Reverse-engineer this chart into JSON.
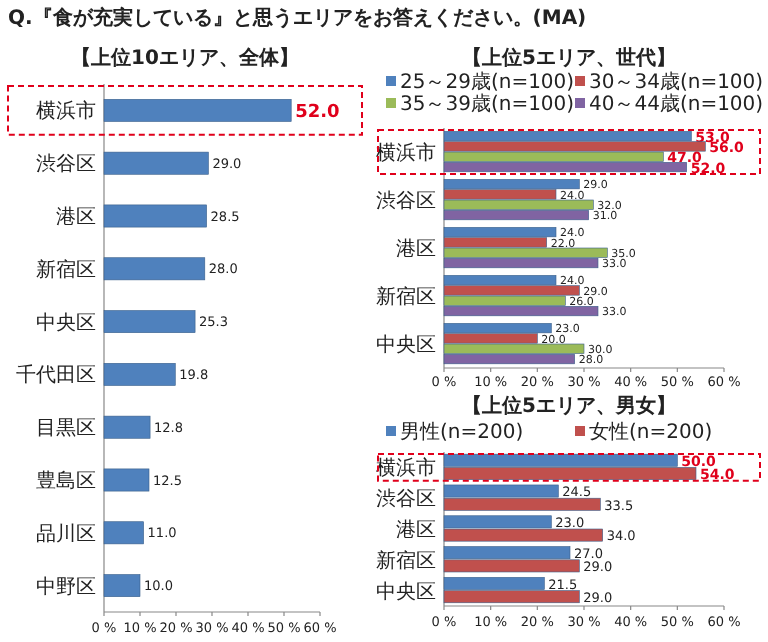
{
  "chart_data": [
    {
      "type": "bar",
      "orientation": "horizontal",
      "title": "【上位10エリア、全体】",
      "annotations": [
        "Q.『食が充実している』と思うエリアをお答えください。(MA)"
      ],
      "categories": [
        "横浜市",
        "渋谷区",
        "港区",
        "新宿区",
        "中央区",
        "千代田区",
        "目黒区",
        "豊島区",
        "品川区",
        "中野区"
      ],
      "values": [
        52.0,
        29.0,
        28.5,
        28.0,
        25.3,
        19.8,
        12.8,
        12.5,
        11.0,
        10.0
      ],
      "color": "#4f81bd",
      "value_labels": [
        "52.0",
        "29.0",
        "28.5",
        "28.0",
        "25.3",
        "19.8",
        "12.8",
        "12.5",
        "11.0",
        "10.0"
      ],
      "xlim": [
        0,
        60
      ],
      "xticks": [
        {
          "value": 0,
          "label": "0 %"
        },
        {
          "value": 10,
          "label": "10 %"
        },
        {
          "value": 20,
          "label": "20 %"
        },
        {
          "value": 30,
          "label": "30 %"
        },
        {
          "value": 40,
          "label": "40 %"
        },
        {
          "value": 50,
          "label": "50 %"
        },
        {
          "value": 60,
          "label": "60 %"
        }
      ],
      "legend": false
    },
    {
      "type": "bar",
      "orientation": "horizontal",
      "title": "【上位5エリア、世代】",
      "categories": [
        "横浜市",
        "渋谷区",
        "港区",
        "新宿区",
        "中央区"
      ],
      "series": [
        {
          "name": "25～29歳(n=100)",
          "color": "#4f81bd",
          "values": [
            53.0,
            29.0,
            24.0,
            24.0,
            23.0
          ],
          "value_labels": [
            "53.0",
            "29.0",
            "24.0",
            "24.0",
            "23.0"
          ]
        },
        {
          "name": "30～34歳(n=100)",
          "color": "#c0504d",
          "values": [
            56.0,
            24.0,
            22.0,
            29.0,
            20.0
          ],
          "value_labels": [
            "56.0",
            "24.0",
            "22.0",
            "29.0",
            "20.0"
          ]
        },
        {
          "name": "35～39歳(n=100)",
          "color": "#9bbb59",
          "values": [
            47.0,
            32.0,
            35.0,
            26.0,
            30.0
          ],
          "value_labels": [
            "47.0",
            "32.0",
            "35.0",
            "26.0",
            "30.0"
          ]
        },
        {
          "name": "40～44歳(n=100)",
          "color": "#8064a2",
          "values": [
            52.0,
            31.0,
            33.0,
            33.0,
            28.0
          ],
          "value_labels": [
            "52.0",
            "31.0",
            "33.0",
            "33.0",
            "28.0"
          ]
        }
      ],
      "xlim": [
        0,
        60
      ],
      "xticks": [
        {
          "value": 0,
          "label": "0 %"
        },
        {
          "value": 10,
          "label": "10 %"
        },
        {
          "value": 20,
          "label": "20 %"
        },
        {
          "value": 30,
          "label": "30 %"
        },
        {
          "value": 40,
          "label": "40 %"
        },
        {
          "value": 50,
          "label": "50 %"
        },
        {
          "value": 60,
          "label": "60 %"
        }
      ],
      "legend": "top"
    },
    {
      "type": "bar",
      "orientation": "horizontal",
      "title": "【上位5エリア、男女】",
      "categories": [
        "横浜市",
        "渋谷区",
        "港区",
        "新宿区",
        "中央区"
      ],
      "series": [
        {
          "name": "男性(n=200)",
          "color": "#4f81bd",
          "values": [
            50.0,
            24.5,
            23.0,
            27.0,
            21.5
          ],
          "value_labels": [
            "50.0",
            "24.5",
            "23.0",
            "27.0",
            "21.5"
          ]
        },
        {
          "name": "女性(n=200)",
          "color": "#c0504d",
          "values": [
            54.0,
            33.5,
            34.0,
            29.0,
            29.0
          ],
          "value_labels": [
            "54.0",
            "33.5",
            "34.0",
            "29.0",
            "29.0"
          ]
        }
      ],
      "xlim": [
        0,
        60
      ],
      "xticks": [
        {
          "value": 0,
          "label": "0 %"
        },
        {
          "value": 10,
          "label": "10 %"
        },
        {
          "value": 20,
          "label": "20 %"
        },
        {
          "value": 30,
          "label": "30 %"
        },
        {
          "value": 40,
          "label": "40 %"
        },
        {
          "value": 50,
          "label": "50 %"
        },
        {
          "value": 60,
          "label": "60 %"
        }
      ],
      "legend": "top"
    }
  ]
}
